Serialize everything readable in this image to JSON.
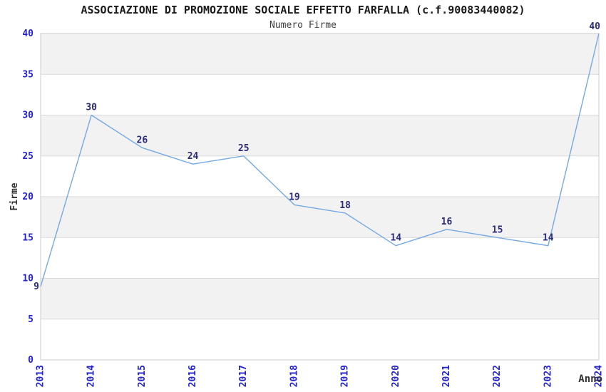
{
  "chart_data": {
    "type": "line",
    "title": "ASSOCIAZIONE DI PROMOZIONE SOCIALE EFFETTO FARFALLA (c.f.90083440082)",
    "subtitle": "Numero Firme",
    "xlabel": "Anno",
    "ylabel": "Firme",
    "categories": [
      "2013",
      "2014",
      "2015",
      "2016",
      "2017",
      "2018",
      "2019",
      "2020",
      "2021",
      "2022",
      "2023",
      "2024"
    ],
    "values": [
      9,
      30,
      26,
      24,
      25,
      19,
      18,
      14,
      16,
      15,
      14,
      40
    ],
    "ylim": [
      0,
      40
    ],
    "yticks": [
      0,
      5,
      10,
      15,
      20,
      25,
      30,
      35,
      40
    ],
    "grid": "alternating horizontal bands, no vertical gridlines",
    "legend": "none",
    "point_labels_visible": true,
    "x_tick_rotation": "vertical (reads bottom-to-top)",
    "colors": {
      "line": "#74a9e4",
      "tick_label": "#2323cc",
      "data_label": "#2b2b78",
      "band_fill": "#f2f2f2",
      "band_edge": "#d9d9d9",
      "plot_border": "#cccccc",
      "title": "#1a1a1a",
      "subtitle": "#3d3d3d",
      "axis_title": "#333333",
      "background": "#ffffff"
    }
  }
}
